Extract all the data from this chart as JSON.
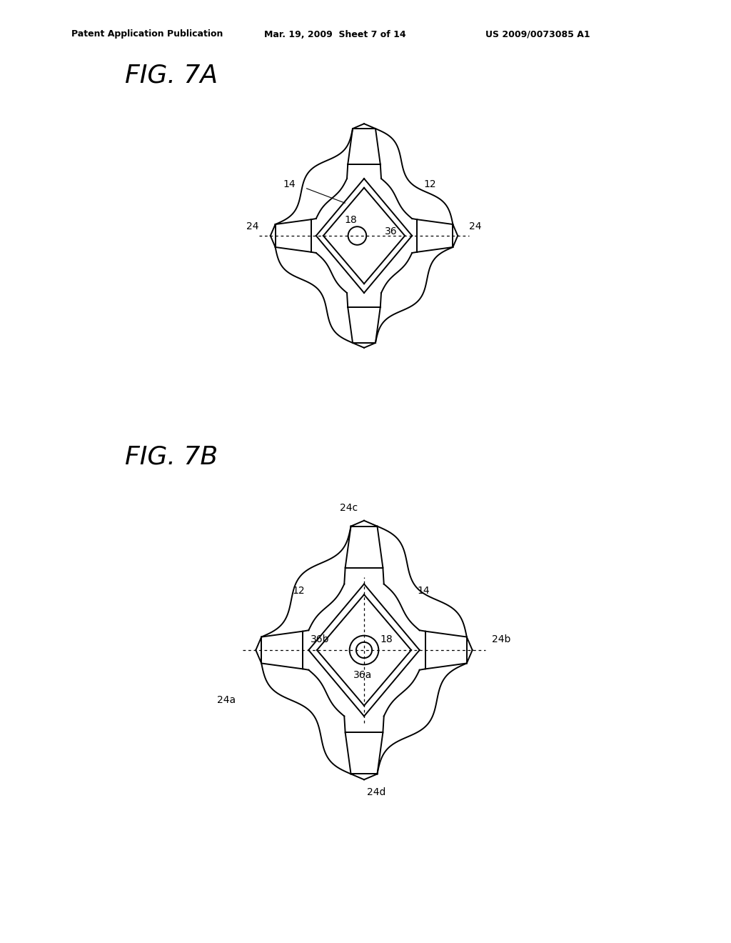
{
  "bg_color": "#ffffff",
  "line_color": "#000000",
  "header_left": "Patent Application Publication",
  "header_mid": "Mar. 19, 2009  Sheet 7 of 14",
  "header_right": "US 2009/0073085 A1",
  "fig7a_title": "FIG. 7A",
  "fig7b_title": "FIG. 7B"
}
